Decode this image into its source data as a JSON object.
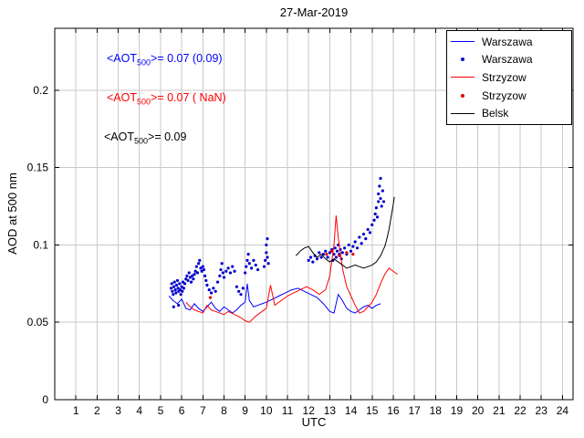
{
  "chart_data": {
    "type": "line",
    "title": "27-Mar-2019",
    "xlabel": "UTC",
    "ylabel": "AOD at 500 nm",
    "xlim": [
      0,
      24.5
    ],
    "ylim": [
      0,
      0.24
    ],
    "xticks": [
      1,
      2,
      3,
      4,
      5,
      6,
      7,
      8,
      9,
      10,
      11,
      12,
      13,
      14,
      15,
      16,
      17,
      18,
      19,
      20,
      21,
      22,
      23,
      24
    ],
    "yticks": [
      0,
      0.05,
      0.1,
      0.15,
      0.2
    ],
    "ytick_labels": [
      "0",
      "0.05",
      "0.1",
      "0.15",
      "0.2"
    ],
    "grid": true,
    "legend_position": "top-right",
    "legend": [
      {
        "label": "Warszawa",
        "marker": "line",
        "color": "#0000ff"
      },
      {
        "label": "Warszawa",
        "marker": "dot",
        "color": "#0000cc"
      },
      {
        "label": "Strzyzow",
        "marker": "line",
        "color": "#ff0000"
      },
      {
        "label": "Strzyzow",
        "marker": "dot",
        "color": "#dd0000"
      },
      {
        "label": "Belsk",
        "marker": "line",
        "color": "#000000"
      }
    ],
    "annotations": [
      {
        "pre": "<AOT",
        "sub": "500",
        "post": ">= 0.07 (0.09)",
        "color": "#0000ff"
      },
      {
        "pre": "<AOT",
        "sub": "500",
        "post": ">= 0.07 ( NaN)",
        "color": "#ff0000"
      },
      {
        "pre": "<AOT",
        "sub": "500",
        "post": ">= 0.09",
        "color": "#000000"
      }
    ],
    "series": [
      {
        "name": "Warszawa",
        "type": "line",
        "color": "#0000ff",
        "points": [
          [
            5.4,
            0.067
          ],
          [
            5.6,
            0.064
          ],
          [
            5.8,
            0.062
          ],
          [
            6.0,
            0.065
          ],
          [
            6.2,
            0.059
          ],
          [
            6.4,
            0.058
          ],
          [
            6.6,
            0.062
          ],
          [
            6.8,
            0.059
          ],
          [
            7.0,
            0.057
          ],
          [
            7.2,
            0.06
          ],
          [
            7.4,
            0.063
          ],
          [
            7.6,
            0.059
          ],
          [
            7.8,
            0.057
          ],
          [
            8.0,
            0.06
          ],
          [
            8.2,
            0.058
          ],
          [
            8.4,
            0.056
          ],
          [
            8.6,
            0.058
          ],
          [
            8.8,
            0.061
          ],
          [
            9.0,
            0.063
          ],
          [
            9.1,
            0.075
          ],
          [
            9.2,
            0.064
          ],
          [
            9.4,
            0.06
          ],
          [
            9.6,
            0.061
          ],
          [
            9.8,
            0.062
          ],
          [
            10.0,
            0.063
          ],
          [
            10.3,
            0.065
          ],
          [
            10.6,
            0.067
          ],
          [
            10.9,
            0.069
          ],
          [
            11.2,
            0.071
          ],
          [
            11.5,
            0.072
          ],
          [
            11.8,
            0.07
          ],
          [
            12.1,
            0.068
          ],
          [
            12.4,
            0.066
          ],
          [
            12.7,
            0.062
          ],
          [
            13.0,
            0.057
          ],
          [
            13.2,
            0.056
          ],
          [
            13.4,
            0.068
          ],
          [
            13.6,
            0.064
          ],
          [
            13.8,
            0.059
          ],
          [
            14.0,
            0.057
          ],
          [
            14.2,
            0.056
          ],
          [
            14.4,
            0.058
          ],
          [
            14.6,
            0.06
          ],
          [
            14.8,
            0.061
          ],
          [
            15.0,
            0.059
          ],
          [
            15.2,
            0.061
          ],
          [
            15.4,
            0.062
          ]
        ]
      },
      {
        "name": "Warszawa",
        "type": "scatter",
        "color": "#0000cc",
        "points": [
          [
            5.5,
            0.072
          ],
          [
            5.53,
            0.075
          ],
          [
            5.56,
            0.07
          ],
          [
            5.6,
            0.068
          ],
          [
            5.62,
            0.06
          ],
          [
            5.63,
            0.073
          ],
          [
            5.66,
            0.076
          ],
          [
            5.7,
            0.071
          ],
          [
            5.73,
            0.069
          ],
          [
            5.76,
            0.074
          ],
          [
            5.8,
            0.077
          ],
          [
            5.83,
            0.072
          ],
          [
            5.85,
            0.061
          ],
          [
            5.86,
            0.07
          ],
          [
            5.9,
            0.075
          ],
          [
            5.93,
            0.071
          ],
          [
            5.96,
            0.068
          ],
          [
            6.0,
            0.073
          ],
          [
            6.03,
            0.07
          ],
          [
            6.06,
            0.076
          ],
          [
            6.1,
            0.072
          ],
          [
            6.15,
            0.075
          ],
          [
            6.2,
            0.078
          ],
          [
            6.25,
            0.08
          ],
          [
            6.3,
            0.077
          ],
          [
            6.35,
            0.082
          ],
          [
            6.4,
            0.079
          ],
          [
            6.45,
            0.076
          ],
          [
            6.5,
            0.08
          ],
          [
            6.55,
            0.078
          ],
          [
            6.6,
            0.081
          ],
          [
            6.65,
            0.083
          ],
          [
            6.7,
            0.086
          ],
          [
            6.75,
            0.082
          ],
          [
            6.8,
            0.088
          ],
          [
            6.85,
            0.09
          ],
          [
            6.9,
            0.085
          ],
          [
            6.95,
            0.083
          ],
          [
            7.0,
            0.086
          ],
          [
            7.05,
            0.084
          ],
          [
            7.1,
            0.08
          ],
          [
            7.15,
            0.077
          ],
          [
            7.2,
            0.074
          ],
          [
            7.3,
            0.071
          ],
          [
            7.4,
            0.069
          ],
          [
            7.5,
            0.072
          ],
          [
            7.6,
            0.07
          ],
          [
            7.7,
            0.076
          ],
          [
            7.8,
            0.08
          ],
          [
            7.85,
            0.084
          ],
          [
            7.9,
            0.088
          ],
          [
            7.95,
            0.082
          ],
          [
            8.0,
            0.079
          ],
          [
            8.1,
            0.083
          ],
          [
            8.2,
            0.085
          ],
          [
            8.3,
            0.082
          ],
          [
            8.4,
            0.086
          ],
          [
            8.5,
            0.083
          ],
          [
            8.6,
            0.073
          ],
          [
            8.7,
            0.07
          ],
          [
            8.8,
            0.068
          ],
          [
            8.9,
            0.072
          ],
          [
            9.0,
            0.082
          ],
          [
            9.05,
            0.086
          ],
          [
            9.1,
            0.09
          ],
          [
            9.15,
            0.094
          ],
          [
            9.2,
            0.088
          ],
          [
            9.3,
            0.085
          ],
          [
            9.4,
            0.09
          ],
          [
            9.5,
            0.087
          ],
          [
            9.6,
            0.084
          ],
          [
            9.9,
            0.086
          ],
          [
            9.95,
            0.09
          ],
          [
            10.0,
            0.095
          ],
          [
            10.0,
            0.1
          ],
          [
            10.05,
            0.104
          ],
          [
            10.05,
            0.092
          ],
          [
            10.1,
            0.088
          ],
          [
            12.0,
            0.09
          ],
          [
            12.1,
            0.092
          ],
          [
            12.2,
            0.089
          ],
          [
            12.3,
            0.093
          ],
          [
            12.4,
            0.091
          ],
          [
            12.5,
            0.095
          ],
          [
            12.6,
            0.092
          ],
          [
            12.7,
            0.094
          ],
          [
            12.8,
            0.096
          ],
          [
            12.9,
            0.092
          ],
          [
            13.0,
            0.095
          ],
          [
            13.1,
            0.097
          ],
          [
            13.15,
            0.09
          ],
          [
            13.2,
            0.094
          ],
          [
            13.25,
            0.098
          ],
          [
            13.3,
            0.092
          ],
          [
            13.35,
            0.096
          ],
          [
            13.4,
            0.1
          ],
          [
            13.45,
            0.094
          ],
          [
            13.5,
            0.097
          ],
          [
            13.55,
            0.091
          ],
          [
            13.6,
            0.095
          ],
          [
            13.7,
            0.098
          ],
          [
            13.8,
            0.094
          ],
          [
            13.9,
            0.1
          ],
          [
            14.0,
            0.096
          ],
          [
            14.1,
            0.099
          ],
          [
            14.2,
            0.102
          ],
          [
            14.3,
            0.098
          ],
          [
            14.4,
            0.105
          ],
          [
            14.5,
            0.101
          ],
          [
            14.6,
            0.107
          ],
          [
            14.7,
            0.104
          ],
          [
            14.8,
            0.11
          ],
          [
            14.9,
            0.108
          ],
          [
            15.0,
            0.113
          ],
          [
            15.1,
            0.116
          ],
          [
            15.15,
            0.12
          ],
          [
            15.2,
            0.124
          ],
          [
            15.25,
            0.118
          ],
          [
            15.3,
            0.128
          ],
          [
            15.3,
            0.133
          ],
          [
            15.35,
            0.138
          ],
          [
            15.4,
            0.13
          ],
          [
            15.4,
            0.143
          ],
          [
            15.45,
            0.125
          ],
          [
            15.5,
            0.135
          ],
          [
            15.55,
            0.128
          ]
        ]
      },
      {
        "name": "Strzyzow",
        "type": "line",
        "color": "#ff0000",
        "points": [
          [
            6.2,
            0.063
          ],
          [
            6.4,
            0.06
          ],
          [
            6.6,
            0.058
          ],
          [
            6.8,
            0.057
          ],
          [
            7.0,
            0.056
          ],
          [
            7.2,
            0.061
          ],
          [
            7.4,
            0.058
          ],
          [
            7.6,
            0.057
          ],
          [
            7.8,
            0.056
          ],
          [
            8.0,
            0.055
          ],
          [
            8.2,
            0.057
          ],
          [
            8.5,
            0.055
          ],
          [
            8.8,
            0.053
          ],
          [
            9.0,
            0.051
          ],
          [
            9.2,
            0.05
          ],
          [
            9.5,
            0.054
          ],
          [
            9.8,
            0.057
          ],
          [
            10.0,
            0.059
          ],
          [
            10.2,
            0.074
          ],
          [
            10.4,
            0.061
          ],
          [
            10.7,
            0.064
          ],
          [
            11.0,
            0.067
          ],
          [
            11.3,
            0.069
          ],
          [
            11.6,
            0.071
          ],
          [
            11.9,
            0.073
          ],
          [
            12.2,
            0.071
          ],
          [
            12.5,
            0.068
          ],
          [
            12.8,
            0.071
          ],
          [
            13.0,
            0.08
          ],
          [
            13.2,
            0.1
          ],
          [
            13.3,
            0.119
          ],
          [
            13.4,
            0.105
          ],
          [
            13.6,
            0.085
          ],
          [
            13.8,
            0.073
          ],
          [
            14.0,
            0.067
          ],
          [
            14.2,
            0.061
          ],
          [
            14.4,
            0.056
          ],
          [
            14.6,
            0.057
          ],
          [
            14.8,
            0.06
          ],
          [
            15.0,
            0.063
          ],
          [
            15.2,
            0.068
          ],
          [
            15.4,
            0.075
          ],
          [
            15.6,
            0.081
          ],
          [
            15.8,
            0.085
          ],
          [
            16.0,
            0.083
          ],
          [
            16.2,
            0.081
          ]
        ]
      },
      {
        "name": "Strzyzow",
        "type": "scatter",
        "color": "#dd0000",
        "points": [
          [
            7.35,
            0.066
          ],
          [
            12.85,
            0.094
          ],
          [
            13.1,
            0.096
          ],
          [
            13.45,
            0.093
          ],
          [
            13.8,
            0.095
          ],
          [
            14.1,
            0.094
          ]
        ]
      },
      {
        "name": "Belsk",
        "type": "line",
        "color": "#000000",
        "points": [
          [
            11.4,
            0.093
          ],
          [
            11.6,
            0.096
          ],
          [
            11.8,
            0.098
          ],
          [
            12.0,
            0.099
          ],
          [
            12.2,
            0.095
          ],
          [
            12.4,
            0.092
          ],
          [
            12.6,
            0.094
          ],
          [
            12.8,
            0.091
          ],
          [
            13.0,
            0.089
          ],
          [
            13.2,
            0.091
          ],
          [
            13.4,
            0.089
          ],
          [
            13.6,
            0.087
          ],
          [
            13.8,
            0.085
          ],
          [
            14.0,
            0.086
          ],
          [
            14.2,
            0.087
          ],
          [
            14.4,
            0.086
          ],
          [
            14.6,
            0.085
          ],
          [
            14.8,
            0.086
          ],
          [
            15.0,
            0.087
          ],
          [
            15.2,
            0.089
          ],
          [
            15.4,
            0.093
          ],
          [
            15.6,
            0.099
          ],
          [
            15.7,
            0.104
          ],
          [
            15.8,
            0.11
          ],
          [
            15.9,
            0.118
          ],
          [
            16.0,
            0.126
          ],
          [
            16.05,
            0.131
          ]
        ]
      }
    ]
  }
}
